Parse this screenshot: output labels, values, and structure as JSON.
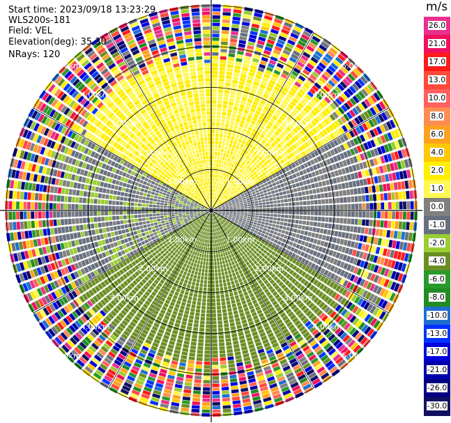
{
  "header": {
    "start_time": "Start time: 2023/09/18 13:23:29",
    "instrument": "WLS200s-181",
    "field": "Field: VEL",
    "elevation": "Elevation(deg): 35.30",
    "nrays": "NRays: 120"
  },
  "colorbar": {
    "title": "m/s",
    "levels": [
      {
        "label": "26.0",
        "color": "#e8308c"
      },
      {
        "label": "21.0",
        "color": "#f01060"
      },
      {
        "label": "17.0",
        "color": "#ff1a1a"
      },
      {
        "label": "13.0",
        "color": "#ff4a3a"
      },
      {
        "label": "10.0",
        "color": "#ff6060"
      },
      {
        "label": "8.0",
        "color": "#ff8c50"
      },
      {
        "label": "6.0",
        "color": "#ffa020"
      },
      {
        "label": "4.0",
        "color": "#ffc800"
      },
      {
        "label": "2.0",
        "color": "#ffee00"
      },
      {
        "label": "1.0",
        "color": "#fff850"
      },
      {
        "label": "0.0",
        "color": "#808080"
      },
      {
        "label": "-1.0",
        "color": "#687080"
      },
      {
        "label": "-2.0",
        "color": "#9acd32"
      },
      {
        "label": "-4.0",
        "color": "#6b8e23"
      },
      {
        "label": "-6.0",
        "color": "#2a9a2a"
      },
      {
        "label": "-8.0",
        "color": "#228b22"
      },
      {
        "label": "-10.0",
        "color": "#1e6fd0"
      },
      {
        "label": "-13.0",
        "color": "#0033ff"
      },
      {
        "label": "-17.0",
        "color": "#0000dd"
      },
      {
        "label": "-21.0",
        "color": "#0000aa"
      },
      {
        "label": "-26.0",
        "color": "#000080"
      },
      {
        "label": "-30.0",
        "color": "#101060"
      }
    ]
  },
  "chart_data": {
    "type": "heatmap",
    "projection": "polar-ppi",
    "field": "VEL",
    "units": "m/s",
    "nrays": 120,
    "range_rings_km": [
      1.0,
      2.0,
      3.0,
      4.0,
      5.0
    ],
    "ring_labels": [
      "1.00km",
      "2.00km",
      "3.00km",
      "4.00km",
      "5.00km"
    ],
    "azimuth_spokes_deg": [
      0,
      30,
      60,
      90,
      120,
      150,
      180,
      210,
      240,
      270,
      300,
      330
    ],
    "max_range_km": 5.1,
    "valid_range_km": 3.5,
    "regions": [
      {
        "name": "north",
        "azimuth_deg": [
          300,
          60
        ],
        "velocity_ms": 2.0
      },
      {
        "name": "west-east-band",
        "azimuth_deg": [
          60,
          120
        ],
        "velocity_ms": 0.0
      },
      {
        "name": "south",
        "azimuth_deg": [
          120,
          240
        ],
        "velocity_ms": -3.0
      },
      {
        "name": "west",
        "azimuth_deg": [
          240,
          300
        ],
        "velocity_ms": -0.5
      }
    ],
    "beyond_valid_range": "random noise",
    "grid": true
  }
}
